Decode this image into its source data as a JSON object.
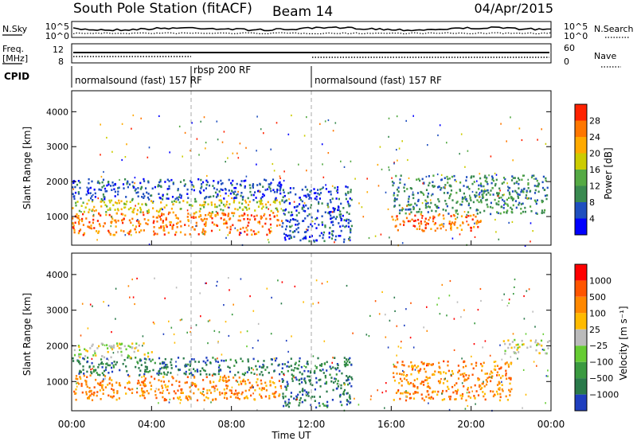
{
  "header": {
    "title": "South Pole Station (fitACF)",
    "beam": "Beam 14",
    "date": "04/Apr/2015"
  },
  "noise_panel": {
    "left_label": "N.Sky",
    "right_label": "N.Search",
    "left_ticks": [
      "10^5",
      "10^0"
    ],
    "right_ticks": [
      "10^5",
      "10^0"
    ]
  },
  "freq_panel": {
    "left_label_line1": "Freq.",
    "left_label_line2": "[MHz]",
    "left_ticks": [
      "12",
      "8"
    ],
    "right_label": "Nave",
    "right_ticks": [
      "60",
      "0"
    ]
  },
  "cpid": {
    "label": "CPID",
    "segments": [
      {
        "text": "normalsound (fast) 157 RF",
        "start_hour": 0,
        "end_hour": 6
      },
      {
        "text": "rbsp 200 RF",
        "start_hour": 6,
        "end_hour": 12
      },
      {
        "text": "normalsound (fast) 157 RF",
        "start_hour": 12,
        "end_hour": 24
      }
    ]
  },
  "chart_data": [
    {
      "type": "heatmap",
      "name": "power",
      "ylabel": "Slant Range [km]",
      "xlabel": "",
      "xlim": [
        0,
        24
      ],
      "ylim": [
        180,
        4600
      ],
      "yticks": [
        1000,
        2000,
        3000,
        4000
      ],
      "colorbar": {
        "label": "Power [dB]",
        "ticks": [
          "4",
          "8",
          "12",
          "16",
          "20",
          "24",
          "28"
        ],
        "colors": [
          "#0000ff",
          "#1f4fbf",
          "#3a8a50",
          "#55aa44",
          "#cccc00",
          "#ffaa00",
          "#ff7700",
          "#ff2200"
        ]
      },
      "regions": [
        {
          "t0": 0.0,
          "t1": 10.5,
          "r0": 500,
          "r1": 1150,
          "level": 6
        },
        {
          "t0": 0.0,
          "t1": 10.5,
          "r0": 1150,
          "r1": 1500,
          "level": 4
        },
        {
          "t0": 0.0,
          "t1": 10.5,
          "r0": 1500,
          "r1": 2100,
          "level": 1
        },
        {
          "t0": 10.5,
          "t1": 14.0,
          "r0": 300,
          "r1": 1900,
          "level": 1
        },
        {
          "t0": 16.0,
          "t1": 20.5,
          "r0": 600,
          "r1": 1100,
          "level": 6
        },
        {
          "t0": 16.0,
          "t1": 23.8,
          "r0": 1100,
          "r1": 2200,
          "level": 2
        }
      ]
    },
    {
      "type": "heatmap",
      "name": "velocity",
      "ylabel": "Slant Range [km]",
      "xlabel": "Time UT",
      "xlim": [
        0,
        24
      ],
      "ylim": [
        180,
        4600
      ],
      "yticks": [
        1000,
        2000,
        3000,
        4000
      ],
      "xticks": [
        "00:00",
        "04:00",
        "08:00",
        "12:00",
        "16:00",
        "20:00",
        "00:00"
      ],
      "colorbar": {
        "label": "Velocity [m s⁻¹]",
        "ticks": [
          "1000",
          "500",
          "100",
          "25",
          "−25",
          "−100",
          "−500",
          "−1000"
        ],
        "colors": [
          "#1f3fbf",
          "#2a7a4a",
          "#3a9a40",
          "#66cc33",
          "#bbbbbb",
          "#ffbb00",
          "#ff8800",
          "#ff5500",
          "#ff0000"
        ]
      },
      "regions": [
        {
          "t0": 0.0,
          "t1": 10.5,
          "r0": 500,
          "r1": 1200,
          "level": 6
        },
        {
          "t0": 0.0,
          "t1": 10.5,
          "r0": 1200,
          "r1": 1700,
          "level": 1
        },
        {
          "t0": 0.0,
          "t1": 4.0,
          "r0": 1700,
          "r1": 2100,
          "level": 4
        },
        {
          "t0": 10.5,
          "t1": 14.0,
          "r0": 300,
          "r1": 1700,
          "level": 1
        },
        {
          "t0": 16.0,
          "t1": 22.0,
          "r0": 500,
          "r1": 1600,
          "level": 6
        },
        {
          "t0": 21.5,
          "t1": 24.0,
          "r0": 1800,
          "r1": 2200,
          "level": 4
        }
      ]
    }
  ]
}
